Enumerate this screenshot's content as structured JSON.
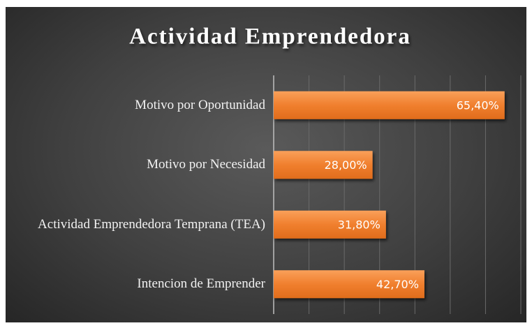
{
  "chart_data": {
    "type": "bar",
    "orientation": "horizontal",
    "title": "Actividad Emprendedora",
    "categories": [
      "Motivo por Oportunidad",
      "Motivo por Necesidad",
      "Actividad Emprendedora Temprana (TEA)",
      "Intencion de Emprender"
    ],
    "values": [
      65.4,
      28.0,
      31.8,
      42.7
    ],
    "value_labels": [
      "65,40%",
      "28,00%",
      "31,80%",
      "42,70%"
    ],
    "color": "#f07f2e",
    "xlim": [
      0,
      70
    ],
    "xticks": [
      0,
      10,
      20,
      30,
      40,
      50,
      60,
      70
    ],
    "grid": true
  }
}
